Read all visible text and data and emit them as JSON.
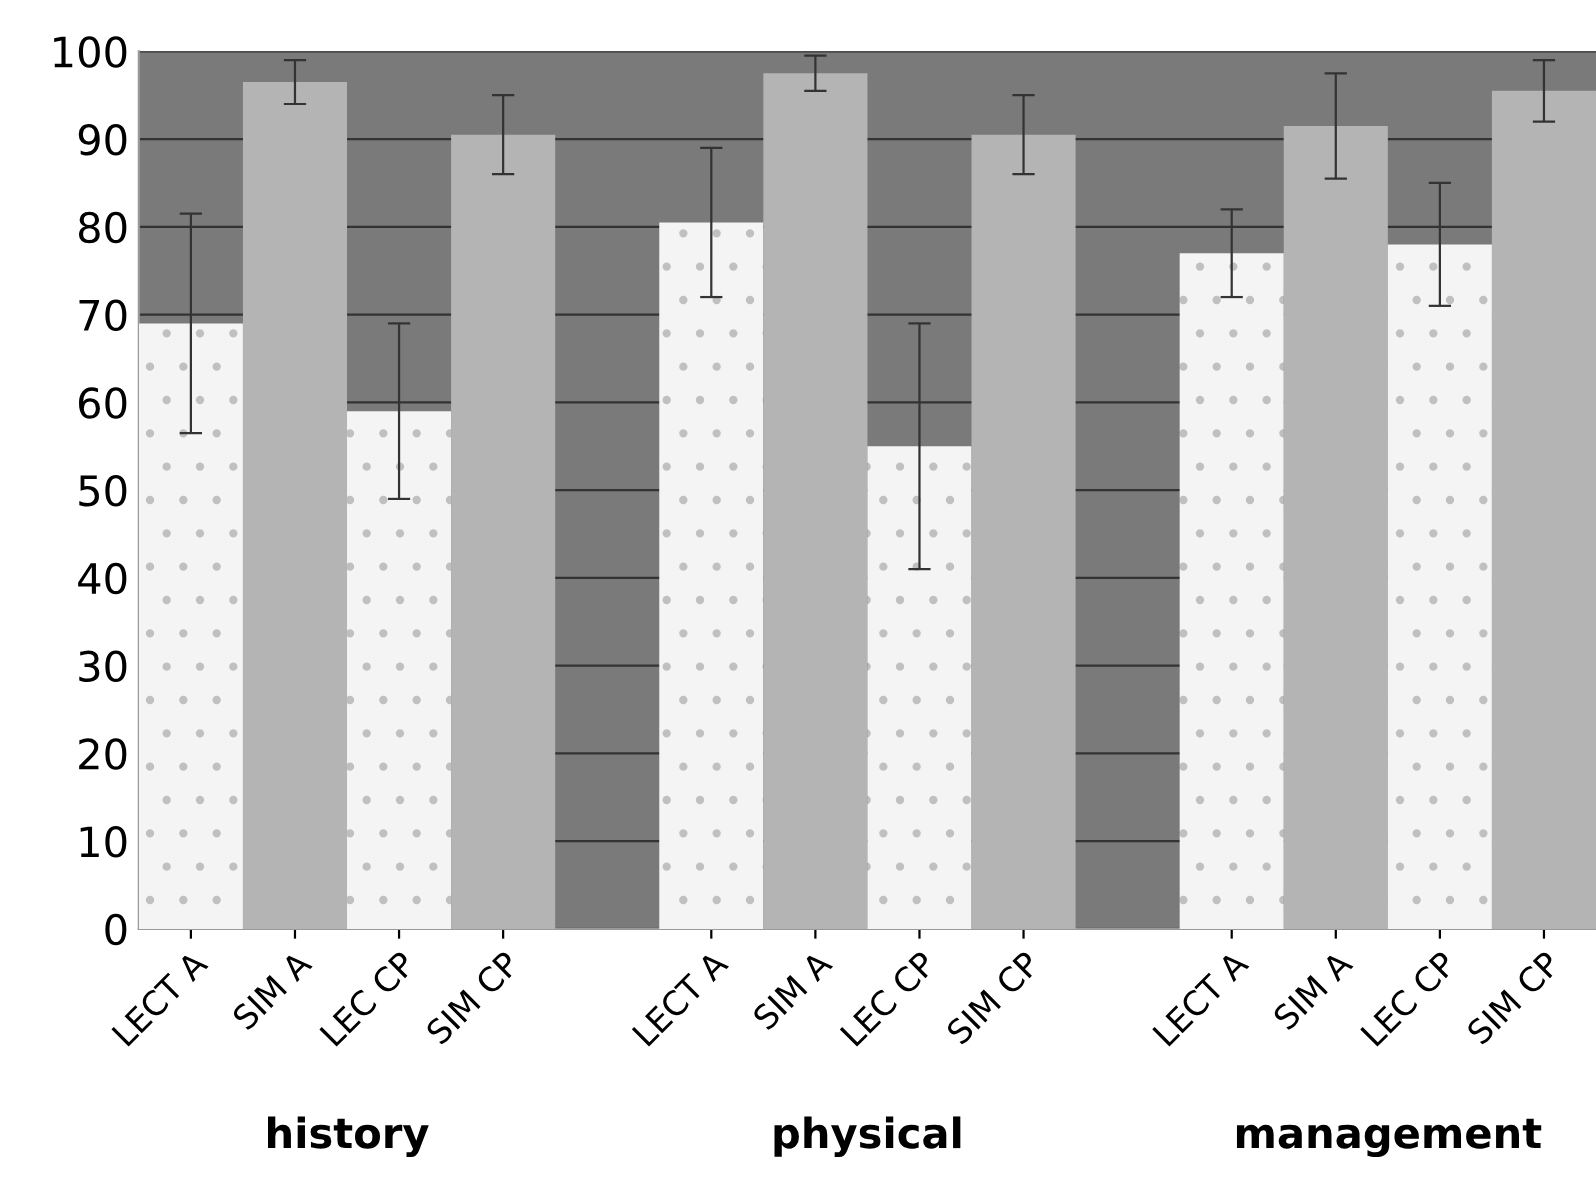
{
  "chart_data": {
    "type": "bar",
    "categories": [
      "LECT A",
      "SIM A",
      "LEC CP",
      "SIM CP",
      null,
      "LECT A",
      "SIM A",
      "LEC CP",
      "SIM CP",
      null,
      "LECT A",
      "SIM A",
      "LEC CP",
      "SIM CP"
    ],
    "values": [
      69,
      96.5,
      59,
      90.5,
      null,
      80.5,
      97.5,
      55,
      90.5,
      null,
      77,
      91.5,
      78,
      95.5
    ],
    "errors": [
      12.5,
      2.5,
      10,
      4.5,
      null,
      8.5,
      2,
      14,
      4.5,
      null,
      5,
      6,
      7,
      3.5
    ],
    "colors": [
      "#f4f4f4",
      "#b4b4b4",
      "#f4f4f4",
      "#b4b4b4",
      null,
      "#f4f4f4",
      "#b4b4b4",
      "#f4f4f4",
      "#b4b4b4",
      null,
      "#f4f4f4",
      "#b4b4b4",
      "#f4f4f4",
      "#b4b4b4"
    ],
    "ylim": [
      0,
      100
    ],
    "yticks": [
      0,
      10,
      20,
      30,
      40,
      50,
      60,
      70,
      80,
      90,
      100
    ],
    "grid": "y",
    "annotations": [
      "history",
      "physical",
      "management"
    ]
  }
}
